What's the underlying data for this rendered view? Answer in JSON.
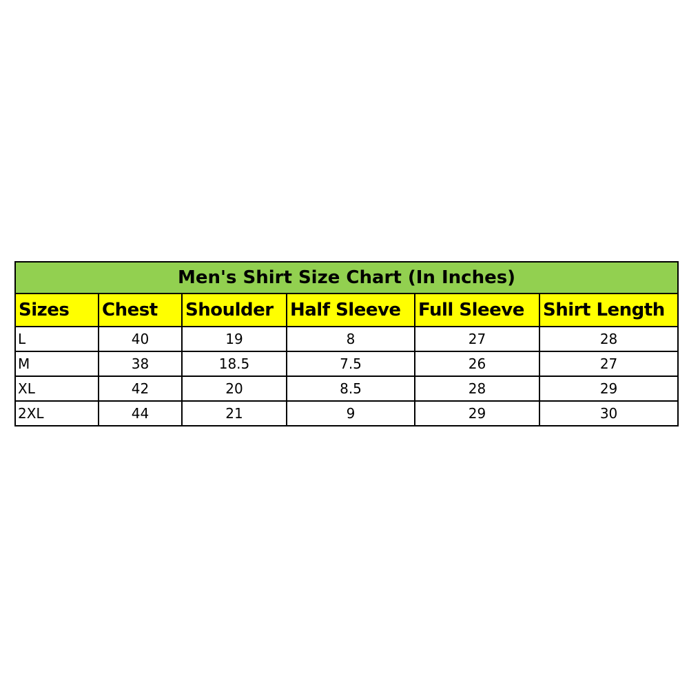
{
  "title": "Men's Shirt Size Chart (In Inches)",
  "colors": {
    "title_bg": "#92d050",
    "header_bg": "#ffff00"
  },
  "headers": [
    "Sizes",
    "Chest",
    "Shoulder",
    "Half Sleeve",
    "Full Sleeve",
    "Shirt Length"
  ],
  "rows": [
    [
      "L",
      "40",
      "19",
      "8",
      "27",
      "28"
    ],
    [
      "M",
      "38",
      "18.5",
      "7.5",
      "26",
      "27"
    ],
    [
      "XL",
      "42",
      "20",
      "8.5",
      "28",
      "29"
    ],
    [
      "2XL",
      "44",
      "21",
      "9",
      "29",
      "30"
    ]
  ]
}
